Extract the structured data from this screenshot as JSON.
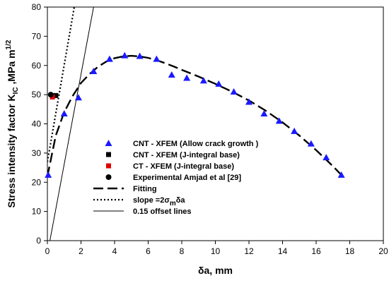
{
  "chart_data": {
    "type": "scatter",
    "xlabel": "δa, mm",
    "ylabel": "Stress intensity factor K",
    "ylabel_sub": "IC",
    "ylabel_unit": " ,MPa m",
    "ylabel_sup": "1/2",
    "xlim": [
      0,
      20
    ],
    "ylim": [
      0,
      80
    ],
    "x_ticks": [
      "0",
      "2",
      "4",
      "6",
      "8",
      "10",
      "12",
      "14",
      "16",
      "18",
      "20"
    ],
    "y_ticks": [
      "0",
      "10",
      "20",
      "30",
      "40",
      "50",
      "60",
      "70",
      "80"
    ],
    "grid": false,
    "legend_position": "bottom-center",
    "series": [
      {
        "name": "CNT - XFEM (Allow crack growth  )",
        "marker": "triangle",
        "color": "#1a1aff",
        "points": [
          [
            0.05,
            22.5
          ],
          [
            1.0,
            43.5
          ],
          [
            1.85,
            49.0
          ],
          [
            2.75,
            58.0
          ],
          [
            3.7,
            62.2
          ],
          [
            4.6,
            63.4
          ],
          [
            5.5,
            63.2
          ],
          [
            6.5,
            62.2
          ],
          [
            7.4,
            56.8
          ],
          [
            8.3,
            55.7
          ],
          [
            9.3,
            54.8
          ],
          [
            10.2,
            53.7
          ],
          [
            11.1,
            51.0
          ],
          [
            12.0,
            47.5
          ],
          [
            12.9,
            43.5
          ],
          [
            13.8,
            41.0
          ],
          [
            14.7,
            37.5
          ],
          [
            15.7,
            33.2
          ],
          [
            16.6,
            28.5
          ],
          [
            17.5,
            22.5
          ]
        ]
      },
      {
        "name": "CNT - XFEM (J-integral base)",
        "marker": "square",
        "color": "#000000",
        "points": [
          [
            0.5,
            49.7
          ]
        ]
      },
      {
        "name": "CT - XFEM (J-integral base)",
        "marker": "square",
        "color": "#e00000",
        "points": [
          [
            0.3,
            49.2
          ]
        ]
      },
      {
        "name": "Experimental Amjad et al [29]",
        "marker": "circle",
        "color": "#000000",
        "points": [
          [
            0.2,
            50.0
          ]
        ]
      },
      {
        "name": "Fitting",
        "style": "dashed-line",
        "color": "#000000",
        "points": [
          [
            0.0,
            22.0
          ],
          [
            0.5,
            36.0
          ],
          [
            1.0,
            44.0
          ],
          [
            1.5,
            49.5
          ],
          [
            2.0,
            54.0
          ],
          [
            2.5,
            57.0
          ],
          [
            3.0,
            59.5
          ],
          [
            3.5,
            61.3
          ],
          [
            4.0,
            62.5
          ],
          [
            4.5,
            63.1
          ],
          [
            5.0,
            63.3
          ],
          [
            5.5,
            63.1
          ],
          [
            6.0,
            62.6
          ],
          [
            6.5,
            61.8
          ],
          [
            7.0,
            60.8
          ],
          [
            7.5,
            59.7
          ],
          [
            8.0,
            58.5
          ],
          [
            9.0,
            56.2
          ],
          [
            10.0,
            53.7
          ],
          [
            11.0,
            51.0
          ],
          [
            12.0,
            48.0
          ],
          [
            13.0,
            44.5
          ],
          [
            14.0,
            40.5
          ],
          [
            15.0,
            36.0
          ],
          [
            16.0,
            31.0
          ],
          [
            17.0,
            25.5
          ],
          [
            17.5,
            22.5
          ]
        ]
      },
      {
        "name_prefix": "slope =2",
        "name_sigma": "σ",
        "name_sub": "m",
        "name_suffix": "δa",
        "style": "dotted-line",
        "color": "#000000",
        "points": [
          [
            0.0,
            27.0
          ],
          [
            1.6,
            80.0
          ]
        ]
      },
      {
        "name": "0.15 offset lines",
        "style": "thin-line",
        "color": "#000000",
        "points": [
          [
            0.15,
            0.0
          ],
          [
            2.75,
            80.0
          ]
        ]
      }
    ]
  }
}
